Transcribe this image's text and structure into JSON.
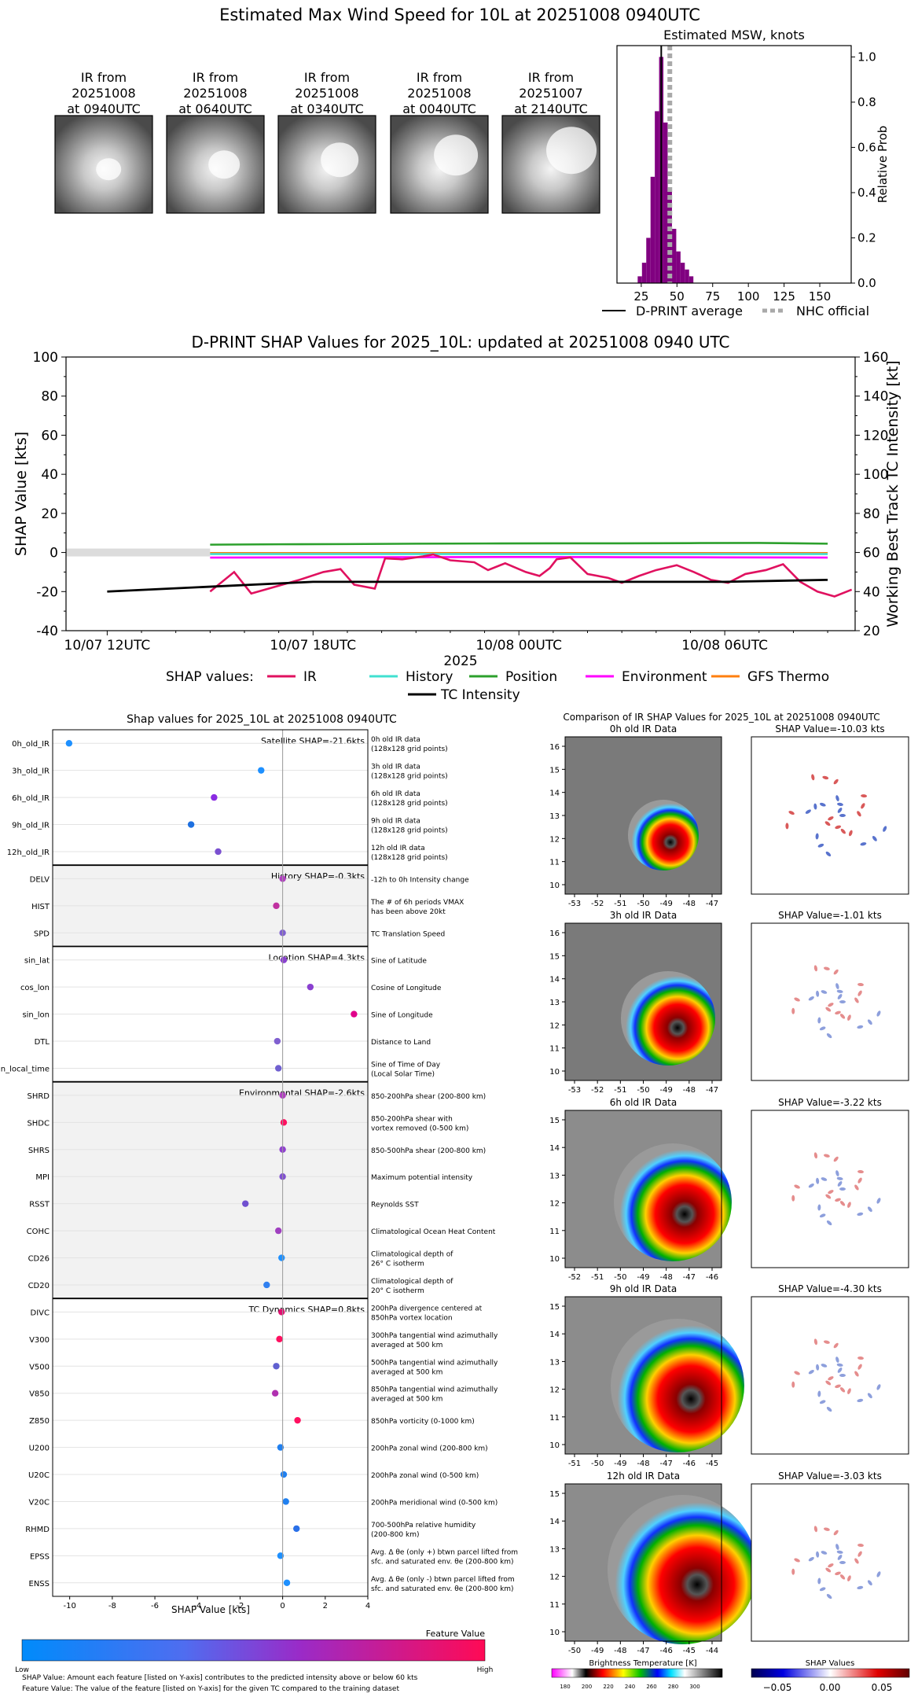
{
  "header": {
    "title": "Estimated Max Wind Speed for 10L at 20251008 0940UTC"
  },
  "ir_thumbnails": [
    {
      "label_lines": [
        "IR from",
        "20251008",
        "at 0940UTC"
      ]
    },
    {
      "label_lines": [
        "IR from",
        "20251008",
        "at 0640UTC"
      ]
    },
    {
      "label_lines": [
        "IR from",
        "20251008",
        "at 0340UTC"
      ]
    },
    {
      "label_lines": [
        "IR from",
        "20251008",
        "at 0040UTC"
      ]
    },
    {
      "label_lines": [
        "IR from",
        "20251007",
        "at 2140UTC"
      ]
    }
  ],
  "msw_chart": {
    "title": "Estimated MSW, knots",
    "ylabel": "Relative Prob",
    "x_ticks": [
      25,
      50,
      75,
      100,
      125,
      150
    ],
    "y_ticks": [
      "0.0",
      "0.2",
      "0.4",
      "0.6",
      "0.8",
      "1.0"
    ],
    "xlim": [
      8,
      172
    ],
    "ylim": [
      0,
      1.05
    ],
    "bin_width": 3,
    "bins": [
      {
        "x": 24,
        "y": 0.03
      },
      {
        "x": 27,
        "y": 0.09
      },
      {
        "x": 30,
        "y": 0.2
      },
      {
        "x": 33,
        "y": 0.47
      },
      {
        "x": 36,
        "y": 0.76
      },
      {
        "x": 39,
        "y": 1.0
      },
      {
        "x": 42,
        "y": 0.71
      },
      {
        "x": 45,
        "y": 0.42
      },
      {
        "x": 48,
        "y": 0.24
      },
      {
        "x": 51,
        "y": 0.14
      },
      {
        "x": 54,
        "y": 0.09
      },
      {
        "x": 57,
        "y": 0.06
      },
      {
        "x": 60,
        "y": 0.03
      }
    ],
    "dprint_average": 39,
    "nhc_official": 45,
    "legend": {
      "dprint": "D-PRINT average",
      "nhc": "NHC official"
    },
    "colors": {
      "bars": "#800080",
      "average": "#000000",
      "nhc": "#a9a9a9"
    }
  },
  "shap_time": {
    "title": "D-PRINT SHAP Values for 2025_10L: updated at 20251008 0940 UTC",
    "ylabel": "SHAP Value [kts]",
    "y2label": "Working Best Track TC Intensity [kt]",
    "xlabel": "2025",
    "y_ticks": [
      -40,
      -20,
      0,
      20,
      40,
      60,
      80,
      100
    ],
    "y2_ticks": [
      20,
      40,
      60,
      80,
      100,
      120,
      140,
      160
    ],
    "x_ticks": [
      {
        "t": 0,
        "label": "10/07 12UTC"
      },
      {
        "t": 6,
        "label": "10/07 18UTC"
      },
      {
        "t": 12,
        "label": "10/08 00UTC"
      },
      {
        "t": 18,
        "label": "10/08 06UTC"
      }
    ],
    "xlim": [
      -1.2,
      21.8
    ],
    "ylim": [
      -40,
      100
    ],
    "y2lim": [
      20,
      160
    ],
    "zero_band_end": 3,
    "legend_prefix": "SHAP values:",
    "series": [
      {
        "name": "Position",
        "color": "#2ca02c",
        "points": [
          [
            3,
            4
          ],
          [
            5,
            4.2
          ],
          [
            7,
            4.3
          ],
          [
            9,
            4.5
          ],
          [
            11,
            4.6
          ],
          [
            13,
            4.7
          ],
          [
            15,
            4.7
          ],
          [
            17,
            4.8
          ],
          [
            19,
            4.9
          ],
          [
            21,
            4.5
          ]
        ]
      },
      {
        "name": "GFS Thermo",
        "color": "#ff7f0e",
        "points": [
          [
            3,
            -0.3
          ],
          [
            21,
            -0.3
          ]
        ]
      },
      {
        "name": "History",
        "color": "#40e0d0",
        "points": [
          [
            3,
            -0.8
          ],
          [
            21,
            -0.8
          ]
        ]
      },
      {
        "name": "Environment",
        "color": "#ff00ff",
        "points": [
          [
            3,
            -2.6
          ],
          [
            6,
            -2.5
          ],
          [
            9,
            -2.4
          ],
          [
            12,
            -2.3
          ],
          [
            15,
            -2.4
          ],
          [
            18,
            -2.5
          ],
          [
            21,
            -2.6
          ]
        ]
      },
      {
        "name": "IR",
        "color": "#e0115f",
        "points": [
          [
            3,
            -20
          ],
          [
            3.7,
            -10
          ],
          [
            4.2,
            -21
          ],
          [
            5.2,
            -16
          ],
          [
            5.6,
            -14
          ],
          [
            6.3,
            -10
          ],
          [
            6.8,
            -8.5
          ],
          [
            7.2,
            -16.5
          ],
          [
            7.8,
            -18.5
          ],
          [
            8.1,
            -3
          ],
          [
            8.6,
            -3.5
          ],
          [
            9.2,
            -2
          ],
          [
            9.5,
            -1
          ],
          [
            10,
            -4
          ],
          [
            10.7,
            -5
          ],
          [
            11.1,
            -9
          ],
          [
            11.6,
            -5.5
          ],
          [
            12.2,
            -10
          ],
          [
            12.6,
            -12
          ],
          [
            12.9,
            -8
          ],
          [
            13.1,
            -3.5
          ],
          [
            13.5,
            -2.5
          ],
          [
            14,
            -11
          ],
          [
            14.6,
            -13
          ],
          [
            15,
            -15.5
          ],
          [
            15.5,
            -12
          ],
          [
            16,
            -9
          ],
          [
            16.6,
            -6.5
          ],
          [
            17.1,
            -10
          ],
          [
            17.6,
            -14
          ],
          [
            18.1,
            -15.5
          ],
          [
            18.6,
            -11
          ],
          [
            19.2,
            -9
          ],
          [
            19.7,
            -6
          ],
          [
            20.2,
            -15
          ],
          [
            20.7,
            -20
          ],
          [
            21.2,
            -22.5
          ],
          [
            21.7,
            -19
          ]
        ]
      }
    ],
    "tc_intensity": {
      "name": "TC Intensity",
      "color": "#000000",
      "points": [
        [
          0,
          40
        ],
        [
          3,
          42.5
        ],
        [
          6,
          45
        ],
        [
          9,
          45
        ],
        [
          12,
          45
        ],
        [
          15,
          45
        ],
        [
          18,
          45
        ],
        [
          21,
          46
        ]
      ]
    }
  },
  "shap_features": {
    "title": "Shap values for 2025_10L at 20251008 0940UTC",
    "xlabel": "SHAP Value [kts]",
    "x_ticks": [
      -10,
      -8,
      -6,
      -4,
      -2,
      0,
      2,
      4
    ],
    "xlim": [
      -10.8,
      4.0
    ],
    "groups": [
      {
        "label": "Satellite SHAP=-21.6kts",
        "shaded": false,
        "features": [
          {
            "name": "0h_old_IR",
            "value": -10.03,
            "color": "#1e90ff",
            "desc": [
              "0h old IR data",
              "(128x128 grid points)"
            ]
          },
          {
            "name": "3h_old_IR",
            "value": -1.01,
            "color": "#1e90ff",
            "desc": [
              "3h old IR data",
              "(128x128 grid points)"
            ]
          },
          {
            "name": "6h_old_IR",
            "value": -3.22,
            "color": "#8a2be2",
            "desc": [
              "6h old IR data",
              "(128x128 grid points)"
            ]
          },
          {
            "name": "9h_old_IR",
            "value": -4.3,
            "color": "#1e70e0",
            "desc": [
              "9h old IR data",
              "(128x128 grid points)"
            ]
          },
          {
            "name": "12h_old_IR",
            "value": -3.03,
            "color": "#7a50d0",
            "desc": [
              "12h old IR data",
              "(128x128 grid points)"
            ]
          }
        ]
      },
      {
        "label": "History SHAP=-0.3kts",
        "shaded": true,
        "features": [
          {
            "name": "DELV",
            "value": 0.0,
            "color": "#b040c0",
            "desc": [
              "-12h to 0h Intensity change"
            ]
          },
          {
            "name": "HIST",
            "value": -0.3,
            "color": "#c030a0",
            "desc": [
              "The # of 6h periods VMAX",
              "has been above 20kt"
            ]
          },
          {
            "name": "SPD",
            "value": 0.0,
            "color": "#8060d0",
            "desc": [
              "TC Translation Speed"
            ]
          }
        ]
      },
      {
        "label": "Location SHAP=4.3kts",
        "shaded": false,
        "features": [
          {
            "name": "sin_lat",
            "value": 0.05,
            "color": "#8a40d0",
            "desc": [
              "Sine of Latitude"
            ]
          },
          {
            "name": "cos_lon",
            "value": 1.3,
            "color": "#8a40d0",
            "desc": [
              "Cosine of Longitude"
            ]
          },
          {
            "name": "sin_lon",
            "value": 3.35,
            "color": "#e0008a",
            "desc": [
              "Sine of Longitude"
            ]
          },
          {
            "name": "DTL",
            "value": -0.25,
            "color": "#8060d0",
            "desc": [
              "Distance to Land"
            ]
          },
          {
            "name": "sin_local_time",
            "value": -0.2,
            "color": "#7060d0",
            "desc": [
              "Sine of Time of Day",
              "(Local Solar Time)"
            ]
          }
        ]
      },
      {
        "label": "Environmental SHAP=-2.6kts",
        "shaded": true,
        "features": [
          {
            "name": "SHRD",
            "value": 0.0,
            "color": "#b040c0",
            "desc": [
              "850-200hPa shear (200-800 km)"
            ]
          },
          {
            "name": "SHDC",
            "value": 0.05,
            "color": "#ff1060",
            "desc": [
              "850-200hPa shear with",
              "vortex removed (0-500 km)"
            ]
          },
          {
            "name": "SHRS",
            "value": 0.0,
            "color": "#9040d0",
            "desc": [
              "850-500hPa shear (200-800 km)"
            ]
          },
          {
            "name": "MPI",
            "value": 0.0,
            "color": "#8050d0",
            "desc": [
              "Maximum potential intensity"
            ]
          },
          {
            "name": "RSST",
            "value": -1.75,
            "color": "#7050d0",
            "desc": [
              "Reynolds SST"
            ]
          },
          {
            "name": "COHC",
            "value": -0.2,
            "color": "#a040c0",
            "desc": [
              "Climatological Ocean Heat Content"
            ]
          },
          {
            "name": "CD26",
            "value": -0.05,
            "color": "#1e90ff",
            "desc": [
              "Climatological depth of",
              "26° C isotherm"
            ]
          },
          {
            "name": "CD20",
            "value": -0.75,
            "color": "#3080f0",
            "desc": [
              "Climatological depth of",
              "20° C isotherm"
            ]
          }
        ]
      },
      {
        "label": "TC Dynamics SHAP=0.8kts",
        "shaded": false,
        "features": [
          {
            "name": "DIVC",
            "value": -0.05,
            "color": "#e01070",
            "desc": [
              "200hPa divergence centered at",
              "850hPa vortex location"
            ]
          },
          {
            "name": "V300",
            "value": -0.15,
            "color": "#ff1060",
            "desc": [
              "300hPa tangential wind azimuthally",
              "averaged at 500 km"
            ]
          },
          {
            "name": "V500",
            "value": -0.3,
            "color": "#6060d0",
            "desc": [
              "500hPa tangential wind azimuthally",
              "averaged at 500 km"
            ]
          },
          {
            "name": "V850",
            "value": -0.35,
            "color": "#b030b0",
            "desc": [
              "850hPa tangential wind azimuthally",
              "averaged at 500 km"
            ]
          },
          {
            "name": "Z850",
            "value": 0.7,
            "color": "#ff1060",
            "desc": [
              "850hPa vorticity (0-1000 km)"
            ]
          },
          {
            "name": "U200",
            "value": -0.1,
            "color": "#2080f0",
            "desc": [
              "200hPa zonal wind (200-800 km)"
            ]
          },
          {
            "name": "U20C",
            "value": 0.05,
            "color": "#2080f0",
            "desc": [
              "200hPa zonal wind (0-500 km)"
            ]
          },
          {
            "name": "V20C",
            "value": 0.15,
            "color": "#2080f0",
            "desc": [
              "200hPa meridional wind (0-500 km)"
            ]
          },
          {
            "name": "RHMD",
            "value": 0.65,
            "color": "#2a70e8",
            "desc": [
              "700-500hPa relative humidity",
              "(200-800 km)"
            ]
          },
          {
            "name": "EPSS",
            "value": -0.1,
            "color": "#1e90ff",
            "desc": [
              "Avg. Δ θe (only +) btwn parcel lifted from",
              "sfc. and saturated env. θe (200-800 km)"
            ]
          },
          {
            "name": "ENSS",
            "value": 0.2,
            "color": "#1e90ff",
            "desc": [
              "Avg. Δ θe (only -) btwn parcel lifted from",
              "sfc. and saturated env. θe (200-800 km)"
            ]
          }
        ]
      }
    ],
    "colorbar": {
      "title": "Feature Value",
      "low": "Low",
      "high": "High"
    },
    "footnotes": [
      "SHAP Value: Amount each feature [listed on Y-axis] contributes to the predicted intensity above or below 60 kts",
      "Feature Value: The value of the feature [listed on Y-axis] for the given TC compared to the training dataset"
    ]
  },
  "ir_comparison": {
    "title": "Comparison of IR SHAP Values for 2025_10L at 20251008 0940UTC",
    "rows": [
      {
        "ir_title": "0h old IR Data",
        "shap_title": "SHAP Value=-10.03 kts",
        "y_ticks": [
          10,
          11,
          12,
          13,
          14,
          15,
          16
        ],
        "x_ticks": [
          -53,
          -52,
          -51,
          -50,
          -49,
          -48,
          -47
        ]
      },
      {
        "ir_title": "3h old IR Data",
        "shap_title": "SHAP Value=-1.01 kts",
        "y_ticks": [
          10,
          11,
          12,
          13,
          14,
          15,
          16
        ],
        "x_ticks": [
          -53,
          -52,
          -51,
          -50,
          -49,
          -48,
          -47
        ]
      },
      {
        "ir_title": "6h old IR Data",
        "shap_title": "SHAP Value=-3.22 kts",
        "y_ticks": [
          10,
          11,
          12,
          13,
          14,
          15
        ],
        "x_ticks": [
          -52,
          -51,
          -50,
          -49,
          -48,
          -47,
          -46
        ]
      },
      {
        "ir_title": "9h old IR Data",
        "shap_title": "SHAP Value=-4.30 kts",
        "y_ticks": [
          10,
          11,
          12,
          13,
          14,
          15
        ],
        "x_ticks": [
          -51,
          -50,
          -49,
          -48,
          -47,
          -46,
          -45
        ]
      },
      {
        "ir_title": "12h old IR Data",
        "shap_title": "SHAP Value=-3.03 kts",
        "y_ticks": [
          10,
          11,
          12,
          13,
          14,
          15
        ],
        "x_ticks": [
          -50,
          -49,
          -48,
          -47,
          -46,
          -45,
          -44
        ]
      }
    ],
    "bt_colorbar": {
      "title": "Brightness Temperature [K]",
      "ticks": [
        180,
        200,
        220,
        240,
        260,
        280,
        300
      ]
    },
    "shap_colorbar": {
      "title": "SHAP Values",
      "ticks": [
        "−0.05",
        "0.00",
        "0.05"
      ]
    }
  },
  "chart_data": [
    {
      "type": "bar",
      "title": "Estimated MSW, knots",
      "ylabel": "Relative Prob",
      "x": [
        24,
        27,
        30,
        33,
        36,
        39,
        42,
        45,
        48,
        51,
        54,
        57,
        60
      ],
      "values": [
        0.03,
        0.09,
        0.2,
        0.47,
        0.76,
        1.0,
        0.71,
        0.42,
        0.24,
        0.14,
        0.09,
        0.06,
        0.03
      ],
      "xlim": [
        8,
        172
      ],
      "ylim": [
        0,
        1.05
      ]
    },
    {
      "type": "line",
      "title": "D-PRINT SHAP Values for 2025_10L: updated at 20251008 0940 UTC",
      "ylabel": "SHAP Value [kts]",
      "xlabel": "2025",
      "ylim": [
        -40,
        100
      ]
    },
    {
      "type": "scatter",
      "title": "Shap values for 2025_10L at 20251008 0940UTC",
      "xlabel": "SHAP Value [kts]",
      "xlim": [
        -10.8,
        4.0
      ]
    }
  ]
}
